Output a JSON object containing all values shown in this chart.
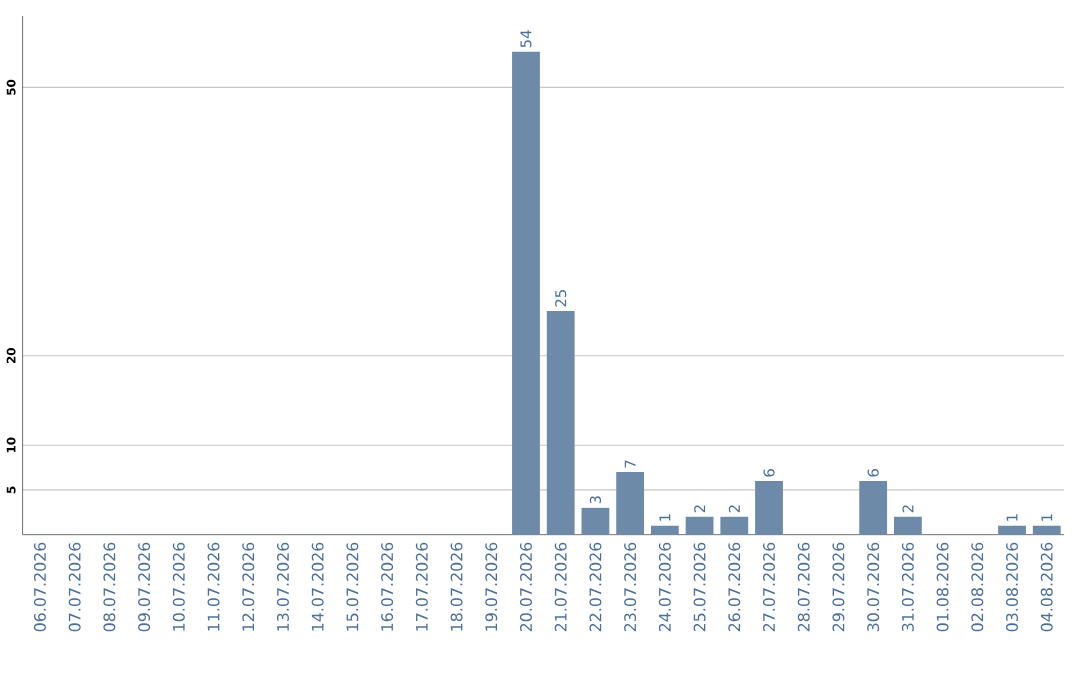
{
  "chart_data": {
    "type": "bar",
    "categories": [
      "06.07.2026",
      "07.07.2026",
      "08.07.2026",
      "09.07.2026",
      "10.07.2026",
      "11.07.2026",
      "12.07.2026",
      "13.07.2026",
      "14.07.2026",
      "15.07.2026",
      "16.07.2026",
      "17.07.2026",
      "18.07.2026",
      "19.07.2026",
      "20.07.2026",
      "21.07.2026",
      "22.07.2026",
      "23.07.2026",
      "24.07.2026",
      "25.07.2026",
      "26.07.2026",
      "27.07.2026",
      "28.07.2026",
      "29.07.2026",
      "30.07.2026",
      "31.07.2026",
      "01.08.2026",
      "02.08.2026",
      "03.08.2026",
      "04.08.2026"
    ],
    "values": [
      0,
      0,
      0,
      0,
      0,
      0,
      0,
      0,
      0,
      0,
      0,
      0,
      0,
      0,
      54,
      25,
      3,
      7,
      1,
      2,
      2,
      6,
      0,
      0,
      6,
      2,
      0,
      0,
      1,
      1
    ],
    "value_labels": [
      null,
      null,
      null,
      null,
      null,
      null,
      null,
      null,
      null,
      null,
      null,
      null,
      null,
      null,
      "54",
      "25",
      "3",
      "7",
      "1",
      "2",
      "2",
      "6",
      null,
      null,
      "6",
      "2",
      null,
      null,
      "1",
      "1"
    ],
    "color": "#6d8aa8",
    "ylim": [
      0,
      58
    ],
    "yticks": [
      5,
      10,
      20,
      50
    ],
    "grid": "y"
  }
}
